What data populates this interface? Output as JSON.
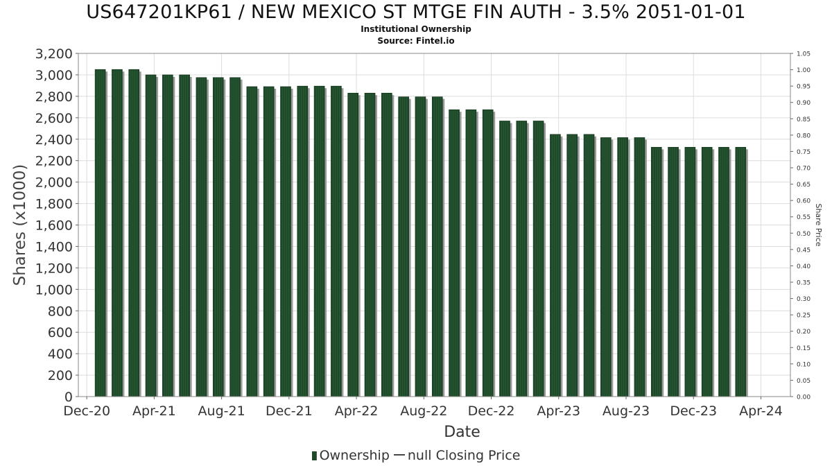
{
  "chart_data": {
    "type": "bar",
    "title": "US647201KP61 / NEW MEXICO ST MTGE FIN AUTH - 3.5% 2051-01-01",
    "subtitle_lines": [
      "Institutional Ownership",
      "Source: Fintel.io"
    ],
    "xlabel": "Date",
    "ylabel": "Shares (x1000)",
    "y2label": "Share Price",
    "ylim": [
      0,
      3200
    ],
    "y_ticks": [
      "0",
      "200",
      "400",
      "600",
      "800",
      "1,000",
      "1,200",
      "1,400",
      "1,600",
      "1,800",
      "2,000",
      "2,200",
      "2,400",
      "2,600",
      "2,800",
      "3,000",
      "3,200"
    ],
    "y_tick_values": [
      0,
      200,
      400,
      600,
      800,
      1000,
      1200,
      1400,
      1600,
      1800,
      2000,
      2200,
      2400,
      2600,
      2800,
      3000,
      3200
    ],
    "y2lim": [
      0,
      1.05
    ],
    "y2_ticks": [
      "0.00",
      "0.05",
      "0.10",
      "0.15",
      "0.20",
      "0.25",
      "0.30",
      "0.35",
      "0.40",
      "0.45",
      "0.50",
      "0.55",
      "0.60",
      "0.65",
      "0.70",
      "0.75",
      "0.80",
      "0.85",
      "0.90",
      "0.95",
      "1.00",
      "1.05"
    ],
    "y2_tick_values": [
      0,
      0.05,
      0.1,
      0.15,
      0.2,
      0.25,
      0.3,
      0.35,
      0.4,
      0.45,
      0.5,
      0.55,
      0.6,
      0.65,
      0.7,
      0.75,
      0.8,
      0.85,
      0.9,
      0.95,
      1.0,
      1.05
    ],
    "x_ticks": [
      "Dec-20",
      "Apr-21",
      "Aug-21",
      "Dec-21",
      "Apr-22",
      "Aug-22",
      "Dec-22",
      "Apr-23",
      "Aug-23",
      "Dec-23",
      "Apr-24"
    ],
    "x_tick_positions": [
      0,
      4,
      8,
      12,
      16,
      20,
      24,
      28,
      32,
      36,
      40
    ],
    "x_range": [
      -0.5,
      41.75
    ],
    "bar_positions": [
      0.8,
      1.8,
      2.8,
      3.8,
      4.8,
      5.8,
      6.8,
      7.8,
      8.8,
      9.8,
      10.8,
      11.8,
      12.8,
      13.8,
      14.8,
      15.8,
      16.8,
      17.8,
      18.8,
      19.8,
      20.8,
      21.8,
      22.8,
      23.8,
      24.8,
      25.8,
      26.8,
      27.8,
      28.8,
      29.8,
      30.8,
      31.8,
      32.8,
      33.8,
      34.8,
      35.8,
      36.8,
      37.8,
      38.8
    ],
    "values": [
      3050,
      3050,
      3050,
      3000,
      3000,
      3000,
      2975,
      2975,
      2975,
      2890,
      2890,
      2890,
      2895,
      2895,
      2895,
      2830,
      2830,
      2830,
      2795,
      2795,
      2795,
      2675,
      2675,
      2675,
      2570,
      2570,
      2570,
      2445,
      2445,
      2445,
      2415,
      2415,
      2415,
      2325,
      2325,
      2325,
      2325,
      2325,
      2325
    ],
    "series": [
      {
        "name": "Ownership",
        "type": "bar"
      },
      {
        "name": "null Closing Price",
        "type": "line",
        "values": []
      }
    ],
    "legend_position": "bottom-center",
    "grid": true,
    "colors": {
      "bar": "#1e4a2a",
      "bar_stripe": "#2c5e38",
      "shadow": "#9a9a9a",
      "grid": "#dcdcdc",
      "axis": "#666666"
    }
  },
  "legend": {
    "ownership_label": "Ownership",
    "price_label": "null Closing Price"
  }
}
